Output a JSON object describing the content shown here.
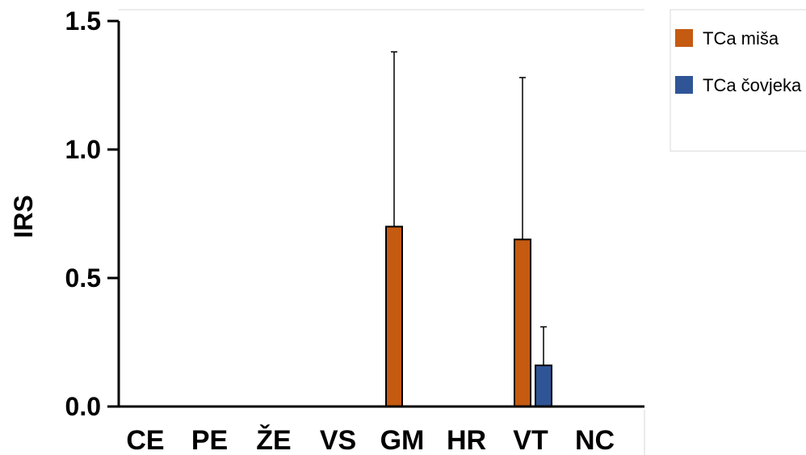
{
  "chart_data": {
    "type": "bar",
    "title": "",
    "xlabel": "",
    "ylabel": "IRS",
    "ylim": [
      0,
      1.5
    ],
    "yticks": [
      "0.0",
      "0.5",
      "1.0",
      "1.5"
    ],
    "categories": [
      "CE",
      "PE",
      "ŽE",
      "VS",
      "GM",
      "HR",
      "VT",
      "NC"
    ],
    "series": [
      {
        "name": "TCa miša",
        "color": "#c55a11",
        "values": [
          0,
          0,
          0,
          0,
          0.7,
          0,
          0.65,
          0
        ],
        "errors": [
          0,
          0,
          0,
          0,
          0.68,
          0,
          0.63,
          0
        ]
      },
      {
        "name": "TCa čovjeka",
        "color": "#2f5597",
        "values": [
          0,
          0,
          0,
          0,
          0,
          0,
          0.16,
          0
        ],
        "errors": [
          0,
          0,
          0,
          0,
          0,
          0,
          0.15,
          0
        ]
      }
    ],
    "legend_position": "top-right",
    "grid": false
  }
}
